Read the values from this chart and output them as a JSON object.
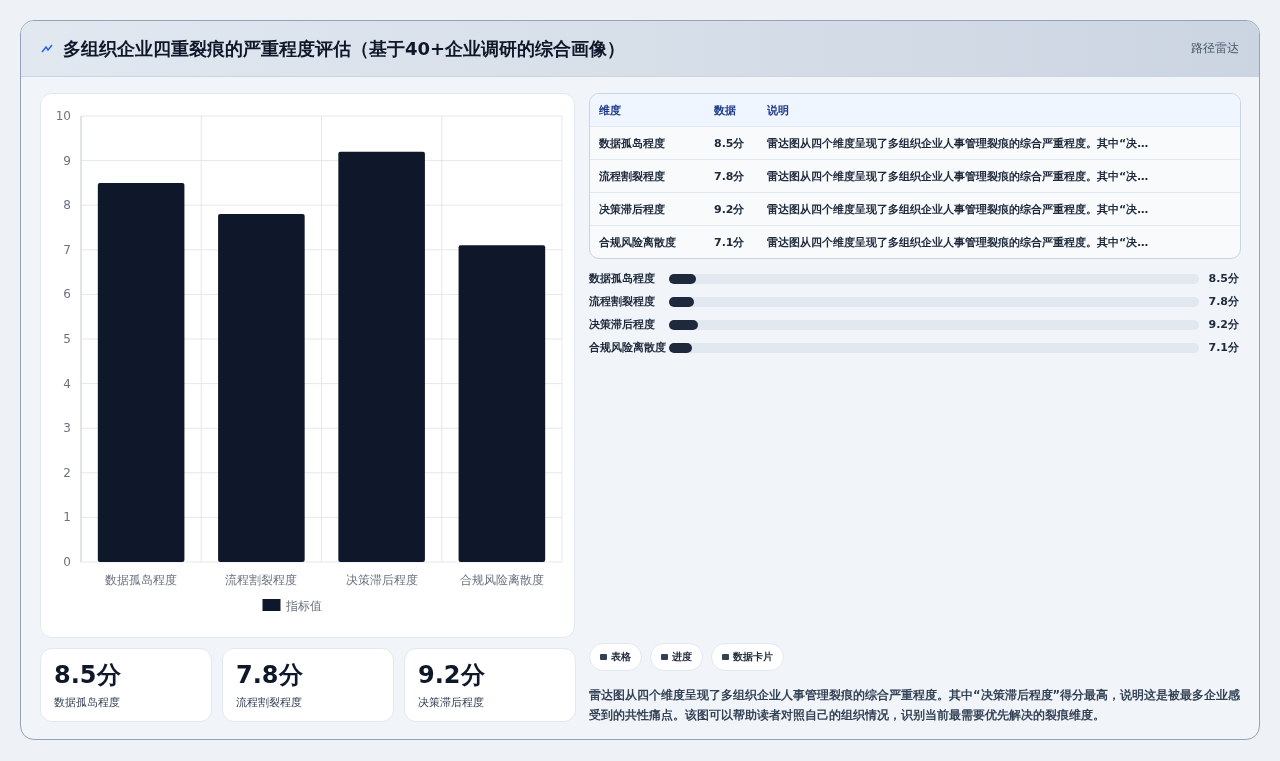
{
  "chart_data": {
    "type": "bar",
    "title": "多组织企业四重裂痕的严重程度评估（基于40+企业调研的综合画像）",
    "subtitle": "路径雷达",
    "categories": [
      "数据孤岛程度",
      "流程割裂程度",
      "决策滞后程度",
      "合规风险离散度"
    ],
    "series": [
      {
        "name": "指标值",
        "color": "#0f172a",
        "values": [
          8.5,
          7.8,
          9.2,
          7.1
        ]
      }
    ],
    "value_labels": [
      "8.5分",
      "7.8分",
      "9.2分",
      "7.1分"
    ],
    "ylim": [
      0,
      10
    ],
    "yticks": [
      0,
      1,
      2,
      3,
      4,
      5,
      6,
      7,
      8,
      9,
      10
    ],
    "grid": true,
    "legend": "bottom",
    "annotations": [
      "维度",
      "数据",
      "说明",
      "雷达图从四个维度呈现了多组织企业人事管理裂痕的综合严重程度。其中“决…",
      "雷达图从四个维度呈现了多组织企业人事管理裂痕的综合严重程度。其中“决…",
      "雷达图从四个维度呈现了多组织企业人事管理裂痕的综合严重程度。其中“决…",
      "雷达图从四个维度呈现了多组织企业人事管理裂痕的综合严重程度。其中“决…",
      "表格",
      "进度",
      "数据卡片",
      "雷达图从四个维度呈现了多组织企业人事管理裂痕的综合严重程度。其中“决策滞后程度”得分最高，说明这是被最多企业感受到的共性痛点。该图可以帮助读者对照自己的组织情况，识别当前最需要优先解决的裂痕维度。"
    ]
  }
}
